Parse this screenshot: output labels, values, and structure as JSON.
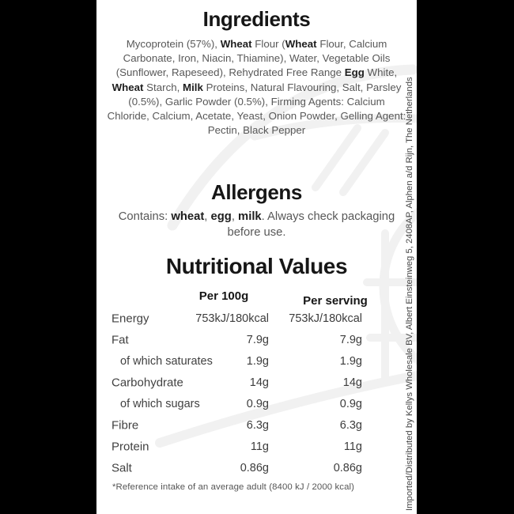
{
  "colors": {
    "page_bg": "#000000",
    "label_bg": "#ffffff",
    "heading_text": "#161616",
    "body_text": "#585858",
    "emphasis_text": "#1e1e1e",
    "table_text": "#414141",
    "watermark": "#f1f1f1"
  },
  "ingredients": {
    "title": "Ingredients",
    "runs": [
      {
        "t": "Mycoprotein (57%), "
      },
      {
        "t": "Wheat",
        "b": true
      },
      {
        "t": " Flour ("
      },
      {
        "t": "Wheat",
        "b": true
      },
      {
        "t": " Flour, Calcium Carbonate, Iron, Niacin, Thiamine), Water, Vegetable Oils (Sunflower, Rapeseed), Rehydrated Free Range "
      },
      {
        "t": "Egg",
        "b": true
      },
      {
        "t": " White, "
      },
      {
        "t": "Wheat",
        "b": true
      },
      {
        "t": " Starch, "
      },
      {
        "t": "Milk",
        "b": true
      },
      {
        "t": " Proteins, Natural Flavouring, Salt, Parsley (0.5%), Garlic Powder (0.5%), Firming Agents: Calcium Chloride, Calcium, Acetate, Yeast, Onion Powder, Gelling Agent: Pectin, Black Pepper"
      }
    ]
  },
  "allergens": {
    "title": "Allergens",
    "runs": [
      {
        "t": "Contains: "
      },
      {
        "t": "wheat",
        "b": true
      },
      {
        "t": ", "
      },
      {
        "t": "egg",
        "b": true
      },
      {
        "t": ", "
      },
      {
        "t": "milk",
        "b": true
      },
      {
        "t": ". Always check packaging before use."
      }
    ]
  },
  "nutrition": {
    "title": "Nutritional Values",
    "col_per_100g": "Per 100g",
    "col_per_serving": "Per serving",
    "rows": [
      {
        "label": "Energy",
        "indent": false,
        "per_100g": "753kJ/180kcal",
        "per_serving": "753kJ/180kcal"
      },
      {
        "label": "Fat",
        "indent": false,
        "per_100g": "7.9g",
        "per_serving": "7.9g"
      },
      {
        "label": "of which saturates",
        "indent": true,
        "per_100g": "1.9g",
        "per_serving": "1.9g"
      },
      {
        "label": "Carbohydrate",
        "indent": false,
        "per_100g": "14g",
        "per_serving": "14g"
      },
      {
        "label": "of which sugars",
        "indent": true,
        "per_100g": "0.9g",
        "per_serving": "0.9g"
      },
      {
        "label": "Fibre",
        "indent": false,
        "per_100g": "6.3g",
        "per_serving": "6.3g"
      },
      {
        "label": "Protein",
        "indent": false,
        "per_100g": "11g",
        "per_serving": "11g"
      },
      {
        "label": "Salt",
        "indent": false,
        "per_100g": "0.86g",
        "per_serving": "0.86g"
      }
    ],
    "footnote": "*Reference intake of an average adult (8400 kJ / 2000 kcal)"
  },
  "distributor_text": "Imported/Distributed by Kellys Wholesale BV, Albert Einsteinweg 5, 2408AP, Alphen a/d Rijn, The Netherlands"
}
